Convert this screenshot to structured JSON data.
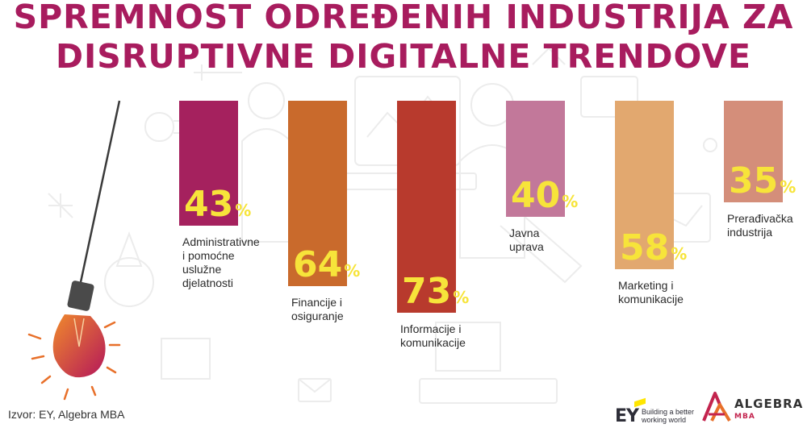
{
  "header": {
    "title_line1": "SPREMNOST ODREĐENIH INDUSTRIJA ZA",
    "title_line2": "DISRUPTIVNE DIGITALNE TRENDOVE",
    "title_color": "#a81c5e"
  },
  "chart_data": {
    "type": "bar",
    "categories": [
      "Administrativne i pomoćne uslužne djelatnosti",
      "Financije i osiguranje",
      "Informacije i komunikacije",
      "Javna uprava",
      "Marketing i komunikacije",
      "Prerađivačka industrija"
    ],
    "values": [
      43,
      64,
      73,
      40,
      58,
      35
    ],
    "value_labels": [
      "43",
      "64",
      "73",
      "40",
      "58",
      "35"
    ],
    "value_unit": "%",
    "ylim": [
      0,
      100
    ],
    "grid": false,
    "legend": "none",
    "bar_colors": [
      "#a5215e",
      "#c96a2c",
      "#b83a2d",
      "#c2789a",
      "#e2a86f",
      "#d48e7a"
    ],
    "value_label_color": "#f7e43a",
    "category_label_lines": [
      "Administrativne\ni pomoćne\nuslužne\ndjelatnosti",
      "Financije i\nosiguranje",
      "Informacije i\nkomunikacije",
      "Javna\nuprava",
      "Marketing i\nkomunikacije",
      "Prerađivačka\nindustrija"
    ]
  },
  "footer": {
    "source": "Izvor: EY, Algebra MBA",
    "ey_mark": "EY",
    "ey_tagline": "Building a better\nworking world",
    "ey_yellow": "#ffe600",
    "algebra_name": "ALGEBRA",
    "algebra_sub": "MBA",
    "algebra_accent": "#c3244e"
  },
  "icons": [
    "light-bulb-icon",
    "algebra-logo-icon",
    "ey-logo-icon"
  ]
}
